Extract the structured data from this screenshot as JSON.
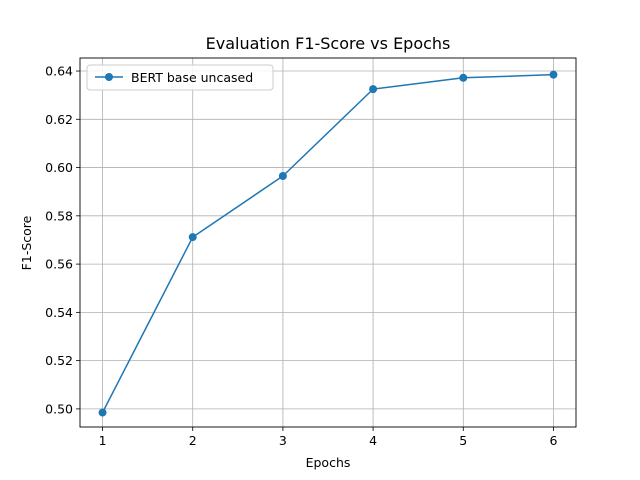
{
  "chart_data": {
    "type": "line",
    "title": "Evaluation F1-Score vs Epochs",
    "xlabel": "Epochs",
    "ylabel": "F1-Score",
    "x": [
      1,
      2,
      3,
      4,
      5,
      6
    ],
    "series": [
      {
        "name": "BERT base uncased",
        "color": "#1f77b4",
        "marker": "circle",
        "values": [
          0.4985,
          0.5712,
          0.5965,
          0.6325,
          0.6372,
          0.6385
        ]
      }
    ],
    "xlim": [
      0.75,
      6.25
    ],
    "ylim": [
      0.4925,
      0.6454
    ],
    "xticks": [
      1,
      2,
      3,
      4,
      5,
      6
    ],
    "xtick_labels": [
      "1",
      "2",
      "3",
      "4",
      "5",
      "6"
    ],
    "yticks": [
      0.5,
      0.52,
      0.54,
      0.56,
      0.58,
      0.6,
      0.62,
      0.64
    ],
    "ytick_labels": [
      "0.50",
      "0.52",
      "0.54",
      "0.56",
      "0.58",
      "0.60",
      "0.62",
      "0.64"
    ],
    "grid": true,
    "legend_position": "top-left"
  }
}
